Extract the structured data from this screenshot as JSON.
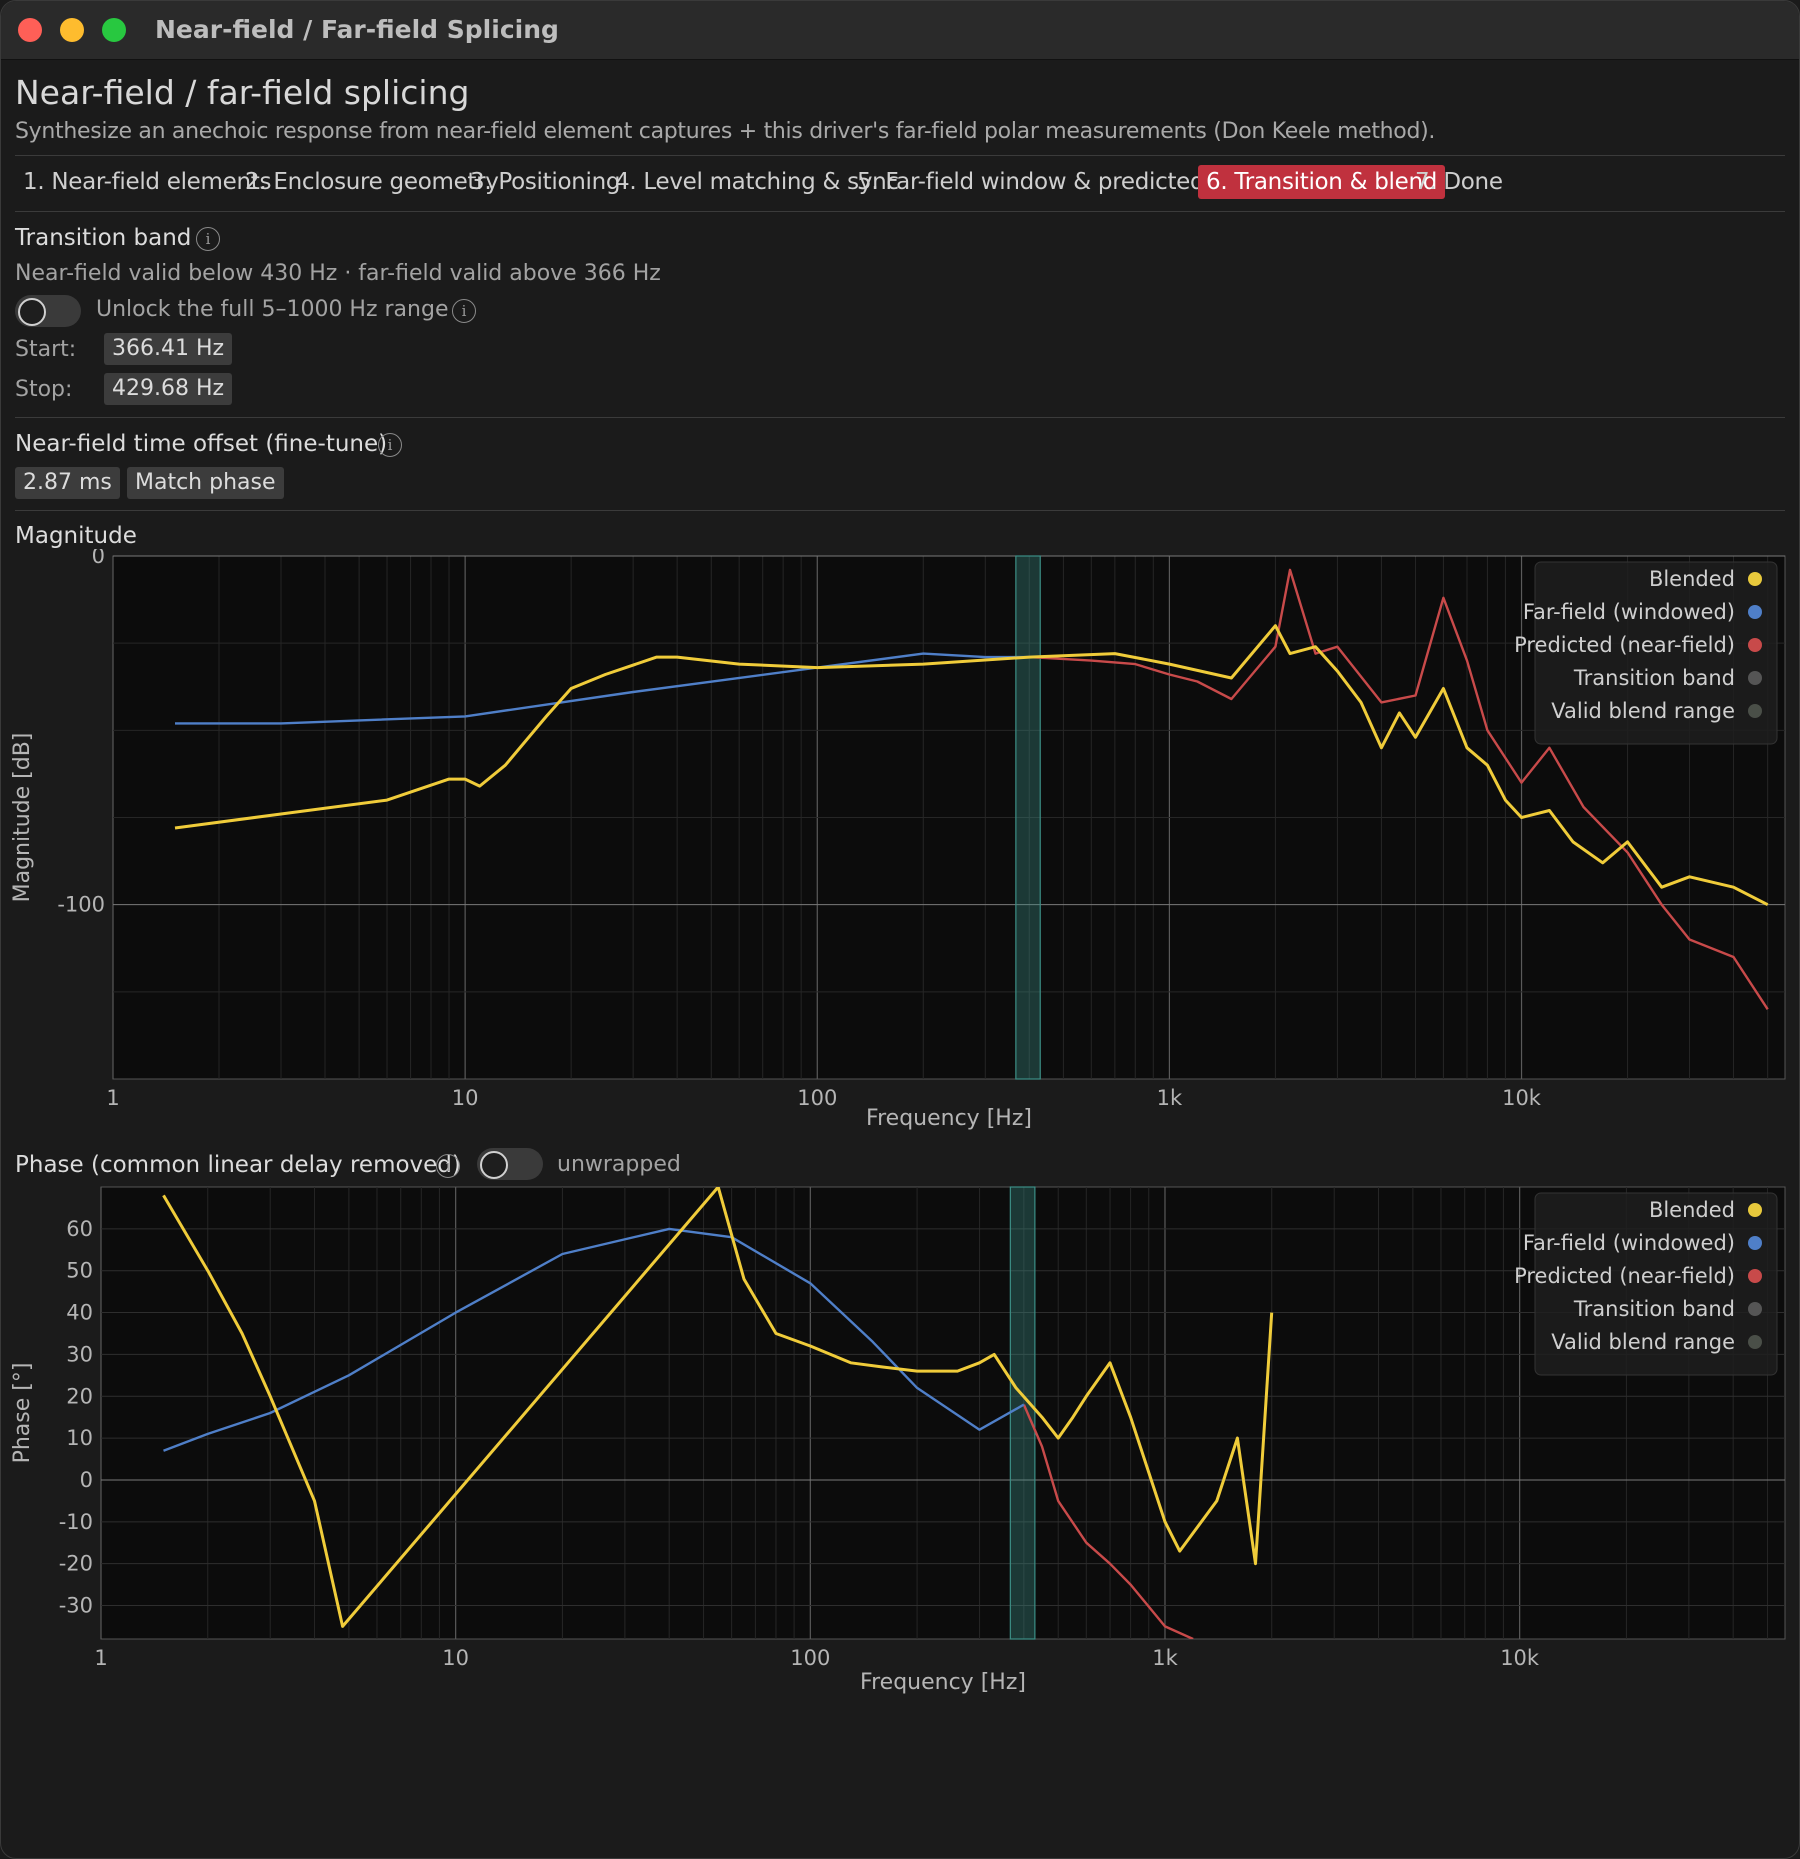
{
  "window": {
    "title": "Near-field / Far-field Splicing"
  },
  "header": {
    "title": "Near-field / far-field splicing",
    "subtitle": "Synthesize an anechoic response from near-field element captures + this driver's far-field polar measurements (Don Keele method)."
  },
  "tabs": [
    {
      "label": "1. Near-field elements",
      "active": false
    },
    {
      "label": "2. Enclosure geometry",
      "active": false
    },
    {
      "label": "3. Positioning",
      "active": false
    },
    {
      "label": "4. Level matching & sync",
      "active": false
    },
    {
      "label": "5. Far-field window & predicted level",
      "active": false
    },
    {
      "label": "6. Transition & blend",
      "active": true
    },
    {
      "label": "7. Done",
      "active": false
    }
  ],
  "transition": {
    "heading": "Transition band",
    "validity": "Near-field valid below 430 Hz  ·  far-field valid above 366 Hz",
    "unlock_label": "Unlock the full 5–1000 Hz range",
    "unlock_on": false,
    "start_label": "Start:",
    "start_value": "366.41 Hz",
    "stop_label": "Stop:",
    "stop_value": "429.68 Hz"
  },
  "offset": {
    "heading": "Near-field time offset (fine-tune)",
    "value": "2.87 ms",
    "match_button": "Match phase"
  },
  "colors": {
    "blended": "#f0cc3a",
    "farfield": "#4f7fc8",
    "predicted": "#c84a4a",
    "transition": "#3c8f86",
    "accent": "#c0313e"
  },
  "legend": [
    {
      "label": "Blended",
      "color": "#e8c93c"
    },
    {
      "label": "Far-field (windowed)",
      "color": "#4f7fc8"
    },
    {
      "label": "Predicted (near-field)",
      "color": "#c84a4a"
    },
    {
      "label": "Transition band",
      "color": "#555555"
    },
    {
      "label": "Valid blend range",
      "color": "#4a4f48"
    }
  ],
  "magnitude": {
    "title": "Magnitude",
    "ylabel": "Magnitude [dB]",
    "xlabel": "Frequency [Hz]",
    "yticks": [
      "0",
      "-100"
    ],
    "xticks": [
      "1",
      "10",
      "100",
      "1k",
      "10k"
    ]
  },
  "phase": {
    "title": "Phase (common linear delay removed)",
    "toggle_label": "unwrapped",
    "toggle_on": false,
    "ylabel": "Phase [°]",
    "xlabel": "Frequency [Hz]",
    "yticks": [
      "60",
      "50",
      "40",
      "30",
      "20",
      "10",
      "0",
      "-10",
      "-20",
      "-30"
    ],
    "xticks": [
      "1",
      "10",
      "100",
      "1k",
      "10k"
    ]
  },
  "chart_data": [
    {
      "type": "line",
      "title": "Magnitude",
      "xlabel": "Frequency [Hz]",
      "ylabel": "Magnitude [dB]",
      "xscale": "log",
      "xlim": [
        1,
        56000
      ],
      "ylim": [
        -150,
        0
      ],
      "grid": true,
      "legend_position": "top-right",
      "transition_band_hz": [
        366.41,
        429.68
      ],
      "series": [
        {
          "name": "Blended",
          "x": [
            1.5,
            3,
            6,
            9,
            10,
            11,
            13,
            17,
            20,
            25,
            35,
            40,
            60,
            100,
            200,
            400,
            700,
            1000,
            1500,
            2000,
            2200,
            2600,
            3000,
            3500,
            4000,
            4500,
            5000,
            6000,
            7000,
            8000,
            9000,
            10000,
            12000,
            14000,
            17000,
            20000,
            25000,
            30000,
            40000,
            50000
          ],
          "y": [
            -78,
            -74,
            -70,
            -64,
            -64,
            -66,
            -60,
            -46,
            -38,
            -34,
            -29,
            -29,
            -31,
            -32,
            -31,
            -29,
            -28,
            -31,
            -35,
            -20,
            -28,
            -26,
            -33,
            -42,
            -55,
            -45,
            -52,
            -38,
            -55,
            -60,
            -70,
            -75,
            -73,
            -82,
            -88,
            -82,
            -95,
            -92,
            -95,
            -100
          ]
        },
        {
          "name": "Far-field (windowed)",
          "x": [
            1.5,
            3,
            10,
            30,
            100,
            200,
            300,
            400
          ],
          "y": [
            -48,
            -48,
            -46,
            -39,
            -32,
            -28,
            -29,
            -29
          ]
        },
        {
          "name": "Predicted (near-field)",
          "x": [
            400,
            600,
            800,
            1000,
            1200,
            1500,
            2000,
            2200,
            2600,
            3000,
            4000,
            5000,
            6000,
            7000,
            8000,
            10000,
            12000,
            15000,
            20000,
            25000,
            30000,
            40000,
            50000
          ],
          "y": [
            -29,
            -30,
            -31,
            -34,
            -36,
            -41,
            -26,
            -4,
            -28,
            -26,
            -42,
            -40,
            -12,
            -30,
            -50,
            -65,
            -55,
            -72,
            -85,
            -100,
            -110,
            -115,
            -130
          ]
        }
      ]
    },
    {
      "type": "line",
      "title": "Phase (common linear delay removed)",
      "xlabel": "Frequency [Hz]",
      "ylabel": "Phase [°]",
      "xscale": "log",
      "xlim": [
        1,
        56000
      ],
      "ylim": [
        -38,
        70
      ],
      "grid": true,
      "legend_position": "top-right",
      "transition_band_hz": [
        366.41,
        429.68
      ],
      "series": [
        {
          "name": "Blended",
          "x": [
            1.5,
            2,
            2.5,
            3,
            4,
            4.8,
            55,
            65,
            80,
            100,
            130,
            160,
            200,
            260,
            300,
            330,
            380,
            450,
            500,
            550,
            600,
            700,
            800,
            1000,
            1100,
            1400,
            1600,
            1800,
            2000
          ],
          "y": [
            68,
            50,
            35,
            20,
            -5,
            -35,
            70,
            48,
            35,
            32,
            28,
            27,
            26,
            26,
            28,
            30,
            22,
            15,
            10,
            15,
            20,
            28,
            15,
            -10,
            -17,
            -5,
            10,
            -20,
            40
          ]
        },
        {
          "name": "Far-field (windowed)",
          "x": [
            1.5,
            2,
            3,
            5,
            10,
            20,
            40,
            60,
            100,
            150,
            200,
            300,
            400
          ],
          "y": [
            7,
            11,
            16,
            25,
            40,
            54,
            60,
            58,
            47,
            33,
            22,
            12,
            18
          ]
        },
        {
          "name": "Predicted (near-field)",
          "x": [
            400,
            450,
            500,
            600,
            700,
            800,
            1000,
            1200
          ],
          "y": [
            18,
            8,
            -5,
            -15,
            -20,
            -25,
            -35,
            -38
          ]
        }
      ]
    }
  ]
}
